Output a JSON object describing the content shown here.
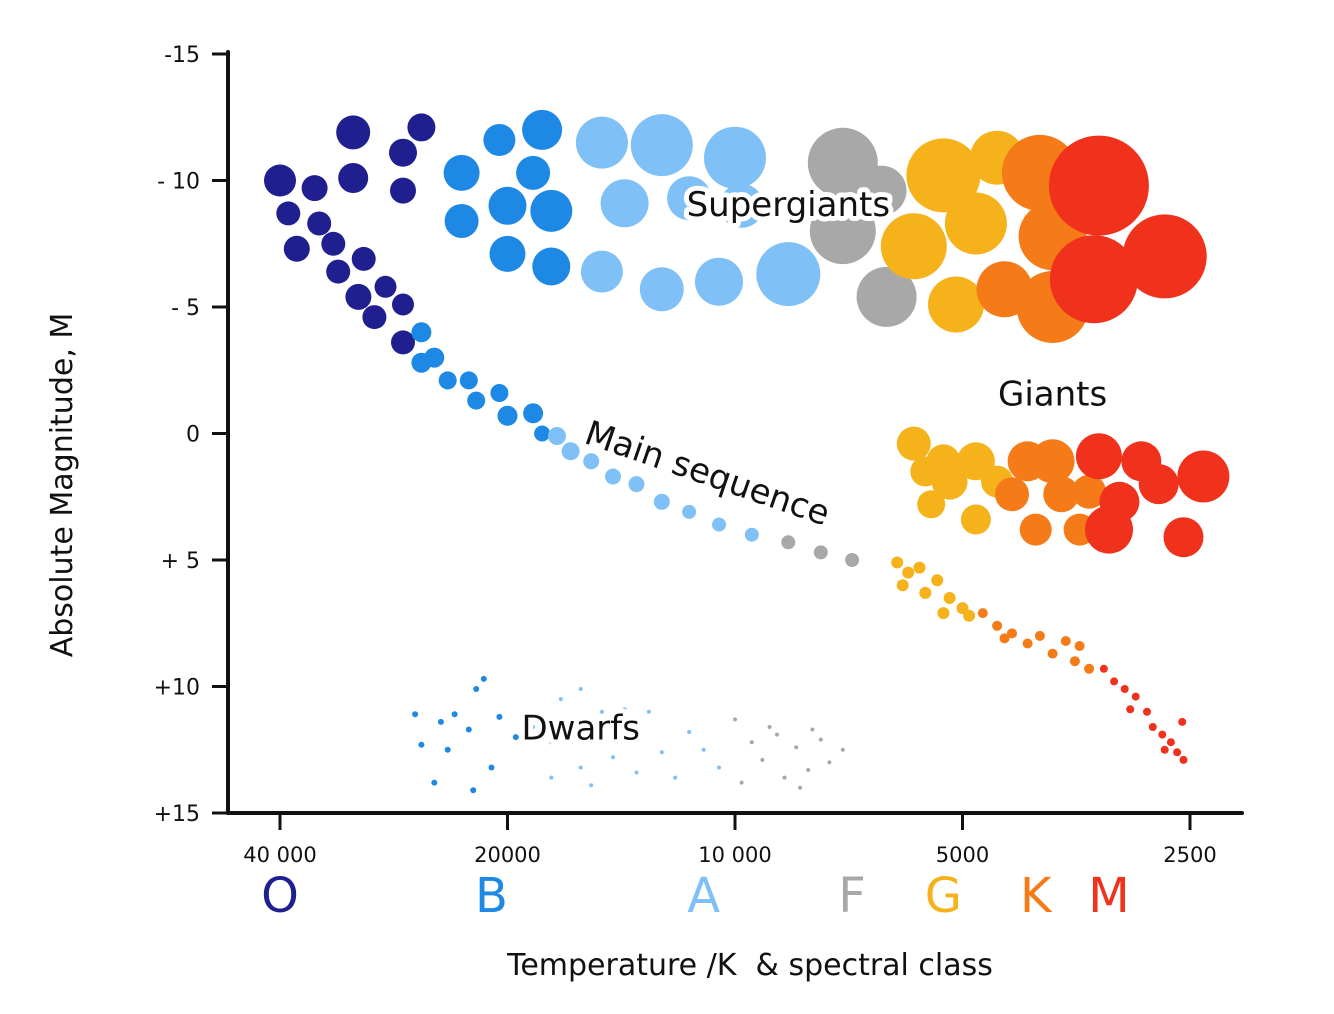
{
  "chart_data": {
    "type": "scatter",
    "title": "",
    "xlabel": "Temperature /K  & spectral class",
    "ylabel": "Absolute Magnitude, M",
    "x_scale": "log",
    "xlim": [
      45000,
      2300
    ],
    "ylim": [
      -15,
      15
    ],
    "x_ticks": [
      {
        "value": 40000,
        "label": "40 000"
      },
      {
        "value": 20000,
        "label": "20000"
      },
      {
        "value": 10000,
        "label": "10 000"
      },
      {
        "value": 5000,
        "label": "5000"
      },
      {
        "value": 2500,
        "label": "2500"
      }
    ],
    "y_ticks": [
      {
        "value": -15,
        "label": "-15"
      },
      {
        "value": -10,
        "label": "- 10"
      },
      {
        "value": -5,
        "label": "- 5"
      },
      {
        "value": 0,
        "label": "0"
      },
      {
        "value": 5,
        "label": "+ 5"
      },
      {
        "value": 10,
        "label": "+10"
      },
      {
        "value": 15,
        "label": "+15"
      }
    ],
    "spectral_classes": [
      {
        "label": "O",
        "temp": 40000,
        "color": "#1f1f8f"
      },
      {
        "label": "B",
        "temp": 21000,
        "color": "#1e88e5"
      },
      {
        "label": "A",
        "temp": 11000,
        "color": "#7fc0f7"
      },
      {
        "label": "F",
        "temp": 7000,
        "color": "#a8a8a8"
      },
      {
        "label": "G",
        "temp": 5300,
        "color": "#f5b21a"
      },
      {
        "label": "K",
        "temp": 4000,
        "color": "#f57a18"
      },
      {
        "label": "M",
        "temp": 3200,
        "color": "#f0311c"
      }
    ],
    "region_labels": [
      {
        "text": "Supergiants",
        "temp": 8500,
        "mag": -8.6
      },
      {
        "text": "Giants",
        "temp": 3800,
        "mag": -1.1
      },
      {
        "text": "Main sequence",
        "temp": 11000,
        "mag": 2
      },
      {
        "text": "Dwarfs",
        "temp": 16000,
        "mag": 12.1
      }
    ],
    "series": [
      {
        "name": "Main sequence",
        "color_by_class": true,
        "points": [
          [
            40000,
            -10,
            16,
            "O"
          ],
          [
            36000,
            -9.7,
            13,
            "O"
          ],
          [
            39000,
            -8.7,
            12,
            "O"
          ],
          [
            35500,
            -8.3,
            12,
            "O"
          ],
          [
            38000,
            -7.3,
            13,
            "O"
          ],
          [
            34000,
            -7.5,
            12,
            "O"
          ],
          [
            33500,
            -6.4,
            12,
            "O"
          ],
          [
            31000,
            -6.9,
            12,
            "O"
          ],
          [
            31500,
            -5.4,
            13,
            "O"
          ],
          [
            29000,
            -5.8,
            11,
            "O"
          ],
          [
            30000,
            -4.6,
            12,
            "O"
          ],
          [
            27500,
            -5.1,
            11,
            "O"
          ],
          [
            27500,
            -3.6,
            12,
            "O"
          ],
          [
            26000,
            -4,
            10,
            "B"
          ],
          [
            25000,
            -3,
            10,
            "B"
          ],
          [
            26000,
            -2.8,
            10,
            "B"
          ],
          [
            24000,
            -2.1,
            9,
            "B"
          ],
          [
            22500,
            -2.1,
            9,
            "B"
          ],
          [
            22000,
            -1.3,
            9,
            "B"
          ],
          [
            20500,
            -1.6,
            9,
            "B"
          ],
          [
            20000,
            -0.7,
            10,
            "B"
          ],
          [
            18500,
            -0.8,
            10,
            "B"
          ],
          [
            18000,
            0,
            8,
            "B"
          ],
          [
            17200,
            0.1,
            9,
            "A"
          ],
          [
            16500,
            0.7,
            9,
            "A"
          ],
          [
            15500,
            1.1,
            8,
            "A"
          ],
          [
            14500,
            1.7,
            8,
            "A"
          ],
          [
            13500,
            2,
            8,
            "A"
          ],
          [
            12500,
            2.7,
            8,
            "A"
          ],
          [
            11500,
            3.1,
            7,
            "A"
          ],
          [
            10500,
            3.6,
            7,
            "A"
          ],
          [
            9500,
            4.0,
            7,
            "A"
          ],
          [
            8500,
            4.3,
            7,
            "F"
          ],
          [
            7700,
            4.7,
            7,
            "F"
          ],
          [
            7000,
            5,
            7,
            "F"
          ],
          [
            6100,
            5.1,
            6,
            "G"
          ],
          [
            5900,
            5.5,
            6,
            "G"
          ],
          [
            5700,
            5.3,
            6,
            "G"
          ],
          [
            6000,
            6.0,
            6,
            "G"
          ],
          [
            5600,
            6.3,
            6,
            "G"
          ],
          [
            5400,
            5.8,
            6,
            "G"
          ],
          [
            5200,
            6.5,
            6,
            "G"
          ],
          [
            5000,
            6.9,
            6,
            "G"
          ],
          [
            5300,
            7.1,
            6,
            "G"
          ],
          [
            4900,
            7.2,
            6,
            "G"
          ],
          [
            4700,
            7.1,
            5,
            "K"
          ],
          [
            4500,
            7.6,
            5,
            "K"
          ],
          [
            4300,
            7.9,
            5,
            "K"
          ],
          [
            4400,
            8.1,
            5,
            "K"
          ],
          [
            4100,
            8.3,
            5,
            "K"
          ],
          [
            3950,
            8.0,
            5,
            "K"
          ],
          [
            3800,
            8.7,
            5,
            "K"
          ],
          [
            3650,
            8.2,
            5,
            "K"
          ],
          [
            3550,
            9.0,
            5,
            "K"
          ],
          [
            3500,
            8.4,
            5,
            "K"
          ],
          [
            3400,
            9.3,
            5,
            "K"
          ],
          [
            3250,
            9.3,
            4,
            "M"
          ],
          [
            3150,
            9.8,
            4,
            "M"
          ],
          [
            3050,
            10.1,
            4,
            "M"
          ],
          [
            2950,
            10.4,
            4,
            "M"
          ],
          [
            3000,
            10.9,
            4,
            "M"
          ],
          [
            2850,
            11.0,
            4,
            "M"
          ],
          [
            2800,
            11.6,
            4,
            "M"
          ],
          [
            2720,
            11.9,
            4,
            "M"
          ],
          [
            2650,
            12.2,
            4,
            "M"
          ],
          [
            2600,
            12.6,
            4,
            "M"
          ],
          [
            2560,
            11.4,
            4,
            "M"
          ],
          [
            2700,
            12.5,
            4,
            "M"
          ],
          [
            2550,
            12.9,
            4,
            "M"
          ]
        ]
      },
      {
        "name": "Supergiants",
        "color_by_class": true,
        "points": [
          [
            32000,
            -11.9,
            17,
            "O"
          ],
          [
            26000,
            -12.1,
            14,
            "O"
          ],
          [
            32000,
            -10.1,
            15,
            "O"
          ],
          [
            27500,
            -11.1,
            14,
            "O"
          ],
          [
            27500,
            -9.6,
            13,
            "O"
          ],
          [
            23000,
            -10.3,
            18,
            "B"
          ],
          [
            20500,
            -11.6,
            16,
            "B"
          ],
          [
            18000,
            -12.0,
            20,
            "B"
          ],
          [
            18500,
            -10.3,
            17,
            "B"
          ],
          [
            23000,
            -8.4,
            17,
            "B"
          ],
          [
            20000,
            -9.0,
            19,
            "B"
          ],
          [
            17500,
            -8.8,
            21,
            "B"
          ],
          [
            20000,
            -7.1,
            18,
            "B"
          ],
          [
            17500,
            -6.6,
            19,
            "B"
          ],
          [
            15000,
            -11.5,
            26,
            "A"
          ],
          [
            12500,
            -11.4,
            31,
            "A"
          ],
          [
            10000,
            -10.9,
            31,
            "A"
          ],
          [
            14000,
            -9.1,
            24,
            "A"
          ],
          [
            11500,
            -9.3,
            22,
            "A"
          ],
          [
            9800,
            -9.0,
            22,
            "A"
          ],
          [
            15000,
            -6.4,
            21,
            "A"
          ],
          [
            12500,
            -5.7,
            22,
            "A"
          ],
          [
            10500,
            -6.0,
            24,
            "A"
          ],
          [
            8500,
            -6.3,
            32,
            "A"
          ],
          [
            7200,
            -10.7,
            35,
            "F"
          ],
          [
            6400,
            -9.6,
            25,
            "F"
          ],
          [
            7200,
            -8.0,
            33,
            "F"
          ],
          [
            6300,
            -5.4,
            30,
            "F"
          ],
          [
            5300,
            -10.2,
            37,
            "G"
          ],
          [
            4500,
            -10.9,
            27,
            "G"
          ],
          [
            5800,
            -7.4,
            33,
            "G"
          ],
          [
            4800,
            -8.3,
            31,
            "G"
          ],
          [
            5100,
            -5.1,
            28,
            "G"
          ],
          [
            3950,
            -10.3,
            38,
            "K"
          ],
          [
            3800,
            -7.8,
            34,
            "K"
          ],
          [
            4400,
            -5.7,
            28,
            "K"
          ],
          [
            3800,
            -5.0,
            36,
            "K"
          ],
          [
            3300,
            -9.8,
            50,
            "M"
          ],
          [
            3350,
            -6.1,
            44,
            "M"
          ],
          [
            2700,
            -7.0,
            42,
            "M"
          ]
        ]
      },
      {
        "name": "Giants",
        "color_by_class": true,
        "points": [
          [
            5300,
            1.1,
            17,
            "G"
          ],
          [
            5800,
            0.4,
            17,
            "G"
          ],
          [
            4800,
            1.1,
            19,
            "G"
          ],
          [
            5600,
            1.5,
            15,
            "G"
          ],
          [
            5200,
            1.9,
            18,
            "G"
          ],
          [
            5500,
            2.8,
            14,
            "G"
          ],
          [
            4800,
            3.4,
            15,
            "G"
          ],
          [
            4500,
            1.9,
            16,
            "G"
          ],
          [
            4300,
            2.4,
            17,
            "K"
          ],
          [
            4100,
            1.1,
            20,
            "K"
          ],
          [
            3800,
            1.1,
            22,
            "K"
          ],
          [
            4000,
            3.8,
            16,
            "K"
          ],
          [
            3700,
            2.4,
            18,
            "K"
          ],
          [
            3500,
            3.8,
            16,
            "K"
          ],
          [
            3400,
            2.3,
            17,
            "K"
          ],
          [
            3300,
            0.9,
            23,
            "M"
          ],
          [
            2900,
            1.1,
            20,
            "M"
          ],
          [
            3200,
            3.8,
            24,
            "M"
          ],
          [
            2750,
            2.0,
            20,
            "M"
          ],
          [
            2550,
            4.1,
            20,
            "M"
          ],
          [
            2400,
            1.7,
            26,
            "M"
          ],
          [
            3100,
            2.7,
            20,
            "M"
          ]
        ]
      },
      {
        "name": "Dwarfs",
        "color_by_class": true,
        "points": [
          [
            26500,
            11.1,
            3,
            "B"
          ],
          [
            24500,
            11.4,
            3,
            "B"
          ],
          [
            23500,
            11.1,
            3,
            "B"
          ],
          [
            22000,
            10.1,
            3,
            "B"
          ],
          [
            21500,
            9.7,
            3,
            "B"
          ],
          [
            26000,
            12.3,
            3,
            "B"
          ],
          [
            24000,
            12.5,
            3,
            "B"
          ],
          [
            22500,
            11.7,
            3,
            "B"
          ],
          [
            25000,
            13.8,
            3,
            "B"
          ],
          [
            21000,
            13.2,
            3,
            "B"
          ],
          [
            22200,
            14.1,
            3,
            "B"
          ],
          [
            19500,
            12.0,
            3,
            "B"
          ],
          [
            20500,
            11.2,
            3,
            "B"
          ],
          [
            17000,
            10.5,
            2,
            "A"
          ],
          [
            16000,
            10.1,
            2,
            "A"
          ],
          [
            15000,
            11.0,
            2,
            "A"
          ],
          [
            14000,
            10.9,
            2,
            "A"
          ],
          [
            13000,
            11.0,
            2,
            "A"
          ],
          [
            17500,
            12.2,
            2,
            "A"
          ],
          [
            16000,
            13.2,
            2,
            "A"
          ],
          [
            14500,
            12.8,
            2,
            "A"
          ],
          [
            13500,
            13.4,
            2,
            "A"
          ],
          [
            12500,
            12.6,
            2,
            "A"
          ],
          [
            12000,
            13.6,
            2,
            "A"
          ],
          [
            11000,
            12.5,
            2,
            "A"
          ],
          [
            15500,
            13.9,
            2,
            "A"
          ],
          [
            18500,
            11.6,
            2,
            "A"
          ],
          [
            17500,
            13.6,
            2,
            "A"
          ],
          [
            11500,
            11.8,
            2,
            "A"
          ],
          [
            10500,
            13.2,
            2,
            "A"
          ],
          [
            10000,
            11.3,
            2,
            "F"
          ],
          [
            9500,
            12.2,
            2,
            "F"
          ],
          [
            9200,
            12.9,
            2,
            "F"
          ],
          [
            8800,
            11.9,
            2,
            "F"
          ],
          [
            8600,
            13.6,
            2,
            "F"
          ],
          [
            8300,
            12.4,
            2,
            "F"
          ],
          [
            8000,
            13.3,
            2,
            "F"
          ],
          [
            7700,
            12.1,
            2,
            "F"
          ],
          [
            7500,
            13.0,
            2,
            "F"
          ],
          [
            7200,
            12.5,
            2,
            "F"
          ],
          [
            9800,
            13.8,
            2,
            "F"
          ],
          [
            8200,
            14.0,
            2,
            "F"
          ],
          [
            9000,
            11.6,
            2,
            "F"
          ],
          [
            7900,
            11.7,
            2,
            "F"
          ]
        ]
      }
    ]
  }
}
